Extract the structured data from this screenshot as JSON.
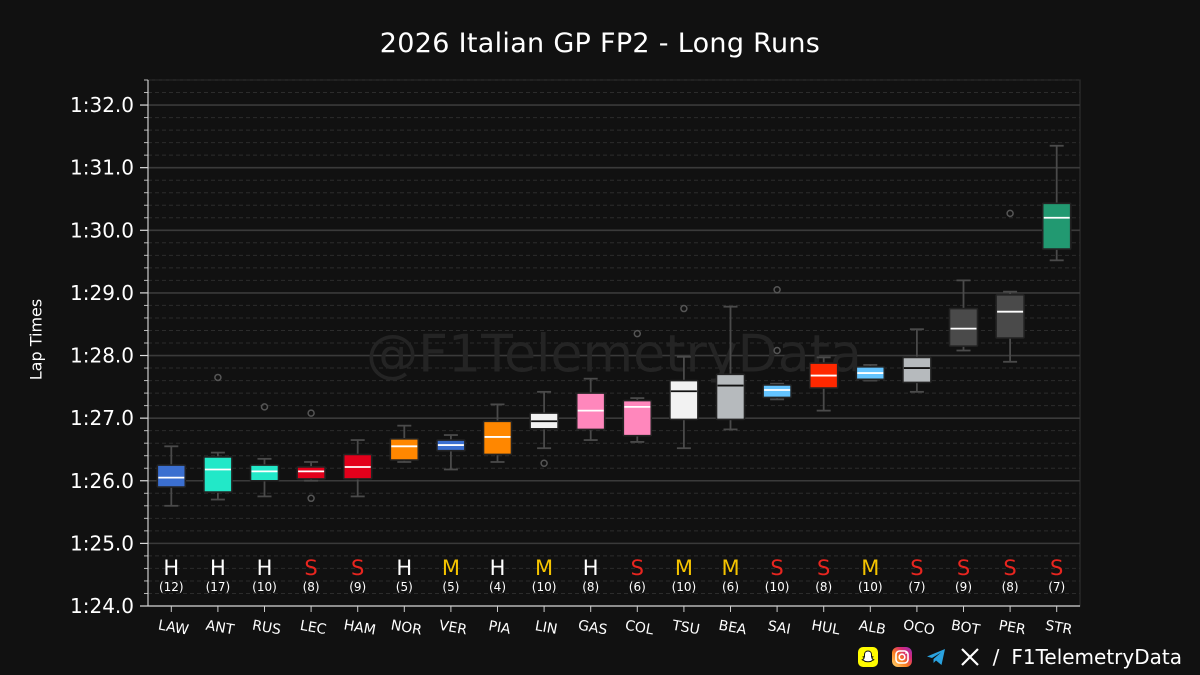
{
  "title": "2026 Italian GP FP2 - Long Runs",
  "footer": {
    "separator": "/",
    "handle": "F1TelemetryData"
  },
  "chart_data": {
    "type": "box",
    "title": "2026 Italian GP FP2 - Long Runs",
    "xlabel": "",
    "ylabel": "Lap Times",
    "watermark": "@F1TelemetryData",
    "ylim": [
      84.0,
      92.4
    ],
    "y_ticks": [
      {
        "value": 84,
        "label": "1:24.0"
      },
      {
        "value": 85,
        "label": "1:25.0"
      },
      {
        "value": 86,
        "label": "1:26.0"
      },
      {
        "value": 87,
        "label": "1:27.0"
      },
      {
        "value": 88,
        "label": "1:28.0"
      },
      {
        "value": 89,
        "label": "1:29.0"
      },
      {
        "value": 90,
        "label": "1:30.0"
      },
      {
        "value": 91,
        "label": "1:31.0"
      },
      {
        "value": 92,
        "label": "1:32.0"
      }
    ],
    "compound_colors": {
      "H": "#ffffff",
      "M": "#f5c400",
      "S": "#e8251f"
    },
    "drivers": [
      {
        "code": "LAW",
        "compound": "H",
        "laps": "(12)",
        "color": "#3b6fd0",
        "whislo": 85.6,
        "q1": 85.9,
        "med": 86.05,
        "q3": 86.25,
        "whishi": 86.55,
        "fliers": []
      },
      {
        "code": "ANT",
        "compound": "H",
        "laps": "(17)",
        "color": "#22e8c8",
        "whislo": 85.7,
        "q1": 85.82,
        "med": 86.18,
        "q3": 86.38,
        "whishi": 86.45,
        "fliers": [
          87.65
        ]
      },
      {
        "code": "RUS",
        "compound": "H",
        "laps": "(10)",
        "color": "#22e8c8",
        "whislo": 85.75,
        "q1": 86.0,
        "med": 86.15,
        "q3": 86.25,
        "whishi": 86.35,
        "fliers": [
          87.18
        ]
      },
      {
        "code": "LEC",
        "compound": "S",
        "laps": "(8)",
        "color": "#e3001b",
        "whislo": 86.0,
        "q1": 86.03,
        "med": 86.15,
        "q3": 86.22,
        "whishi": 86.3,
        "fliers": [
          85.72,
          87.08
        ]
      },
      {
        "code": "HAM",
        "compound": "S",
        "laps": "(9)",
        "color": "#e3001b",
        "whislo": 85.75,
        "q1": 86.03,
        "med": 86.22,
        "q3": 86.42,
        "whishi": 86.65,
        "fliers": []
      },
      {
        "code": "NOR",
        "compound": "H",
        "laps": "(5)",
        "color": "#ff8700",
        "whislo": 86.3,
        "q1": 86.33,
        "med": 86.55,
        "q3": 86.67,
        "whishi": 86.88,
        "fliers": []
      },
      {
        "code": "VER",
        "compound": "M",
        "laps": "(5)",
        "color": "#3b6fd0",
        "whislo": 86.18,
        "q1": 86.48,
        "med": 86.57,
        "q3": 86.65,
        "whishi": 86.73,
        "fliers": []
      },
      {
        "code": "PIA",
        "compound": "H",
        "laps": "(4)",
        "color": "#ff8700",
        "whislo": 86.3,
        "q1": 86.42,
        "med": 86.7,
        "q3": 86.95,
        "whishi": 87.22,
        "fliers": []
      },
      {
        "code": "LIN",
        "compound": "M",
        "laps": "(10)",
        "color": "#f2f2f2",
        "whislo": 86.52,
        "q1": 86.83,
        "med": 86.95,
        "q3": 87.08,
        "whishi": 87.42,
        "fliers": [
          86.28
        ]
      },
      {
        "code": "GAS",
        "compound": "H",
        "laps": "(8)",
        "color": "#ff87bc",
        "whislo": 86.65,
        "q1": 86.82,
        "med": 87.12,
        "q3": 87.4,
        "whishi": 87.63,
        "fliers": []
      },
      {
        "code": "COL",
        "compound": "S",
        "laps": "(6)",
        "color": "#ff87bc",
        "whislo": 86.62,
        "q1": 86.72,
        "med": 87.18,
        "q3": 87.28,
        "whishi": 87.32,
        "fliers": [
          88.35
        ]
      },
      {
        "code": "TSU",
        "compound": "M",
        "laps": "(10)",
        "color": "#f2f2f2",
        "whislo": 86.52,
        "q1": 86.98,
        "med": 87.43,
        "q3": 87.6,
        "whishi": 87.98,
        "fliers": [
          88.75
        ]
      },
      {
        "code": "BEA",
        "compound": "M",
        "laps": "(6)",
        "color": "#b6babd",
        "whislo": 86.82,
        "q1": 86.98,
        "med": 87.52,
        "q3": 87.7,
        "whishi": 88.78,
        "fliers": []
      },
      {
        "code": "SAI",
        "compound": "S",
        "laps": "(10)",
        "color": "#64c4ff",
        "whislo": 87.3,
        "q1": 87.33,
        "med": 87.45,
        "q3": 87.53,
        "whishi": 87.55,
        "fliers": [
          88.08,
          89.05
        ]
      },
      {
        "code": "HUL",
        "compound": "S",
        "laps": "(8)",
        "color": "#ff2800",
        "whislo": 87.12,
        "q1": 87.48,
        "med": 87.68,
        "q3": 87.88,
        "whishi": 87.97,
        "fliers": []
      },
      {
        "code": "ALB",
        "compound": "M",
        "laps": "(10)",
        "color": "#64c4ff",
        "whislo": 87.6,
        "q1": 87.62,
        "med": 87.72,
        "q3": 87.82,
        "whishi": 87.85,
        "fliers": []
      },
      {
        "code": "OCO",
        "compound": "S",
        "laps": "(7)",
        "color": "#b6babd",
        "whislo": 87.42,
        "q1": 87.57,
        "med": 87.8,
        "q3": 87.97,
        "whishi": 88.42,
        "fliers": []
      },
      {
        "code": "BOT",
        "compound": "S",
        "laps": "(9)",
        "color": "#4a4a4a",
        "whislo": 88.08,
        "q1": 88.15,
        "med": 88.43,
        "q3": 88.75,
        "whishi": 89.2,
        "fliers": []
      },
      {
        "code": "PER",
        "compound": "S",
        "laps": "(8)",
        "color": "#4a4a4a",
        "whislo": 87.9,
        "q1": 88.28,
        "med": 88.7,
        "q3": 88.97,
        "whishi": 89.02,
        "fliers": [
          90.27
        ]
      },
      {
        "code": "STR",
        "compound": "S",
        "laps": "(7)",
        "color": "#229971",
        "whislo": 89.52,
        "q1": 89.7,
        "med": 90.2,
        "q3": 90.43,
        "whishi": 91.35,
        "fliers": []
      }
    ]
  }
}
